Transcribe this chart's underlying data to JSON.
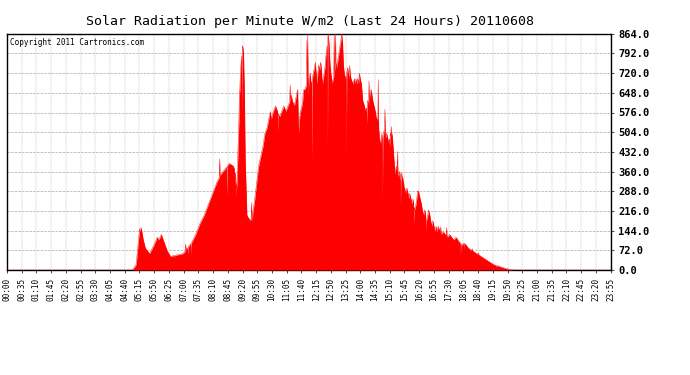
{
  "title": "Solar Radiation per Minute W/m2 (Last 24 Hours) 20110608",
  "copyright": "Copyright 2011 Cartronics.com",
  "y_ticks": [
    0.0,
    72.0,
    144.0,
    216.0,
    288.0,
    360.0,
    432.0,
    504.0,
    576.0,
    648.0,
    720.0,
    792.0,
    864.0
  ],
  "ylim": [
    0,
    864
  ],
  "fill_color": "#FF0000",
  "line_color": "#FF0000",
  "background_color": "#FFFFFF",
  "grid_color": "#AAAAAA",
  "dashed_line_color": "#FF0000",
  "x_labels": [
    "00:00",
    "00:35",
    "01:10",
    "01:45",
    "02:20",
    "02:55",
    "03:30",
    "04:05",
    "04:40",
    "05:15",
    "05:50",
    "06:25",
    "07:00",
    "07:35",
    "08:10",
    "08:45",
    "09:20",
    "09:55",
    "10:30",
    "11:05",
    "11:40",
    "12:15",
    "12:50",
    "13:25",
    "14:00",
    "14:35",
    "15:10",
    "15:45",
    "16:20",
    "16:55",
    "17:30",
    "18:05",
    "18:40",
    "19:15",
    "19:50",
    "20:25",
    "21:00",
    "21:35",
    "22:10",
    "22:45",
    "23:20",
    "23:55"
  ],
  "num_points": 1440
}
